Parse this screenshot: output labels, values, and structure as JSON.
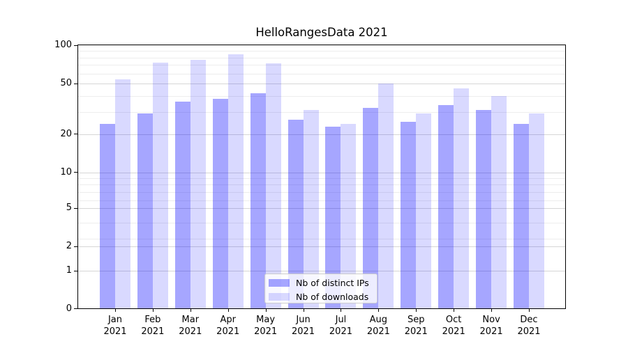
{
  "chart_data": {
    "type": "bar",
    "title": "HelloRangesData 2021",
    "categories": [
      "Jan 2021",
      "Feb 2021",
      "Mar 2021",
      "Apr 2021",
      "May 2021",
      "Jun 2021",
      "Jul 2021",
      "Aug 2021",
      "Sep 2021",
      "Oct 2021",
      "Nov 2021",
      "Dec 2021"
    ],
    "series": [
      {
        "name": "Nb of distinct IPs",
        "color": "#0000ff",
        "opacity": 0.35,
        "values": [
          24,
          29,
          36,
          38,
          42,
          26,
          23,
          32,
          25,
          34,
          31,
          24
        ]
      },
      {
        "name": "Nb of downloads",
        "color": "#0000ff",
        "opacity": 0.15,
        "values": [
          54,
          73,
          77,
          85,
          72,
          31,
          24,
          50,
          29,
          46,
          40,
          29
        ]
      }
    ],
    "xlabel": "",
    "ylabel": "",
    "yscale": "log",
    "ylim": [
      0,
      100
    ],
    "yticks": [
      100,
      50,
      20,
      10,
      5,
      2,
      1,
      0
    ],
    "grid": true,
    "legend_position": "lower center"
  }
}
